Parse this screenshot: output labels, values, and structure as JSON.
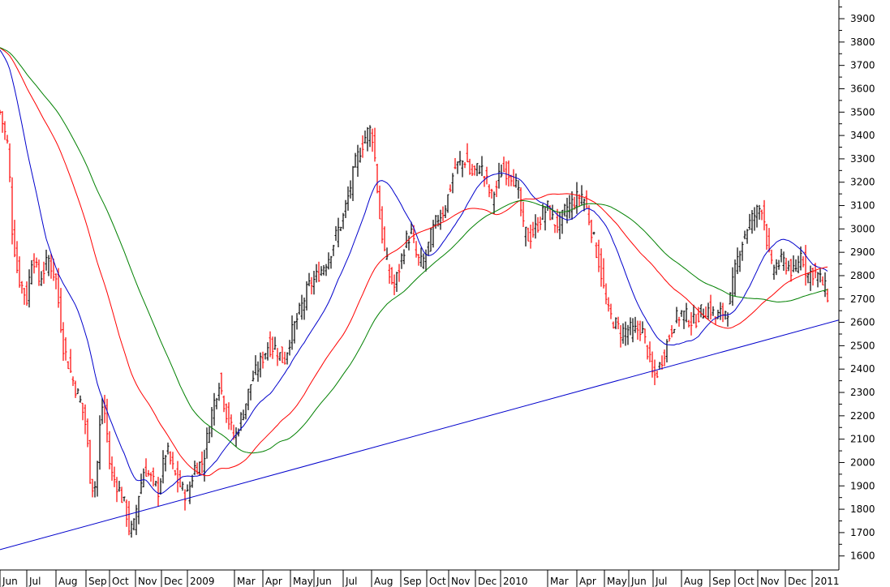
{
  "chart_data": {
    "type": "ohlc",
    "grid": false,
    "legend": "none",
    "y_axis": {
      "side": "right",
      "range": [
        1540,
        3980
      ],
      "ticks": [
        1600,
        1700,
        1800,
        1900,
        2000,
        2100,
        2200,
        2300,
        2400,
        2500,
        2600,
        2700,
        2800,
        2900,
        3000,
        3100,
        3200,
        3300,
        3400,
        3500,
        3600,
        3700,
        3800,
        3900
      ]
    },
    "x_axis": {
      "range": [
        0,
        1034
      ],
      "labels": [
        {
          "text": "Jun",
          "x": 0
        },
        {
          "text": "Jul",
          "x": 33
        },
        {
          "text": "Aug",
          "x": 69
        },
        {
          "text": "Sep",
          "x": 106
        },
        {
          "text": "Oct",
          "x": 135
        },
        {
          "text": "Nov",
          "x": 167
        },
        {
          "text": "Dec",
          "x": 199
        },
        {
          "text": "2009",
          "x": 231
        },
        {
          "text": "Mar",
          "x": 289
        },
        {
          "text": "Apr",
          "x": 324
        },
        {
          "text": "May",
          "x": 358
        },
        {
          "text": "Jun",
          "x": 387
        },
        {
          "text": "Jul",
          "x": 423
        },
        {
          "text": "Aug",
          "x": 458
        },
        {
          "text": "Sep",
          "x": 494
        },
        {
          "text": "Oct",
          "x": 526
        },
        {
          "text": "Nov",
          "x": 553
        },
        {
          "text": "Dec",
          "x": 586
        },
        {
          "text": "2010",
          "x": 617
        },
        {
          "text": "Mar",
          "x": 675
        },
        {
          "text": "Apr",
          "x": 711
        },
        {
          "text": "May",
          "x": 745
        },
        {
          "text": "Jun",
          "x": 775
        },
        {
          "text": "Jul",
          "x": 805
        },
        {
          "text": "Aug",
          "x": 840
        },
        {
          "text": "Sep",
          "x": 875
        },
        {
          "text": "Oct",
          "x": 906
        },
        {
          "text": "Nov",
          "x": 934
        },
        {
          "text": "Dec",
          "x": 968
        },
        {
          "text": "2011",
          "x": 1001
        }
      ]
    },
    "price_keypoints": [
      [
        0,
        3500
      ],
      [
        10,
        3350
      ],
      [
        15,
        3000
      ],
      [
        22,
        2800
      ],
      [
        33,
        2700
      ],
      [
        40,
        2900
      ],
      [
        48,
        2780
      ],
      [
        60,
        2870
      ],
      [
        69,
        2780
      ],
      [
        78,
        2500
      ],
      [
        90,
        2350
      ],
      [
        100,
        2250
      ],
      [
        106,
        2150
      ],
      [
        112,
        1900
      ],
      [
        118,
        1900
      ],
      [
        125,
        2250
      ],
      [
        130,
        2200
      ],
      [
        136,
        1960
      ],
      [
        145,
        1900
      ],
      [
        155,
        1800
      ],
      [
        160,
        1700
      ],
      [
        165,
        1730
      ],
      [
        170,
        1850
      ],
      [
        178,
        1980
      ],
      [
        186,
        1930
      ],
      [
        195,
        1880
      ],
      [
        205,
        2060
      ],
      [
        215,
        1950
      ],
      [
        225,
        1880
      ],
      [
        231,
        1860
      ],
      [
        240,
        1980
      ],
      [
        250,
        2000
      ],
      [
        260,
        2200
      ],
      [
        270,
        2350
      ],
      [
        280,
        2200
      ],
      [
        289,
        2100
      ],
      [
        300,
        2220
      ],
      [
        310,
        2350
      ],
      [
        320,
        2420
      ],
      [
        330,
        2500
      ],
      [
        340,
        2490
      ],
      [
        350,
        2430
      ],
      [
        358,
        2540
      ],
      [
        370,
        2650
      ],
      [
        380,
        2750
      ],
      [
        387,
        2780
      ],
      [
        395,
        2820
      ],
      [
        405,
        2880
      ],
      [
        415,
        2980
      ],
      [
        423,
        3050
      ],
      [
        430,
        3150
      ],
      [
        438,
        3280
      ],
      [
        445,
        3350
      ],
      [
        452,
        3410
      ],
      [
        458,
        3430
      ],
      [
        462,
        3300
      ],
      [
        468,
        3050
      ],
      [
        474,
        2900
      ],
      [
        480,
        2800
      ],
      [
        486,
        2750
      ],
      [
        494,
        2860
      ],
      [
        500,
        2950
      ],
      [
        507,
        2980
      ],
      [
        514,
        2870
      ],
      [
        520,
        2850
      ],
      [
        526,
        2900
      ],
      [
        532,
        2980
      ],
      [
        540,
        3050
      ],
      [
        547,
        3080
      ],
      [
        553,
        3150
      ],
      [
        560,
        3260
      ],
      [
        567,
        3280
      ],
      [
        575,
        3300
      ],
      [
        580,
        3230
      ],
      [
        586,
        3250
      ],
      [
        592,
        3270
      ],
      [
        600,
        3200
      ],
      [
        605,
        3130
      ],
      [
        612,
        3180
      ],
      [
        617,
        3250
      ],
      [
        625,
        3250
      ],
      [
        632,
        3230
      ],
      [
        640,
        3130
      ],
      [
        645,
        3000
      ],
      [
        652,
        2960
      ],
      [
        660,
        3000
      ],
      [
        668,
        3060
      ],
      [
        675,
        3090
      ],
      [
        682,
        3030
      ],
      [
        690,
        3020
      ],
      [
        698,
        3090
      ],
      [
        705,
        3110
      ],
      [
        711,
        3130
      ],
      [
        718,
        3150
      ],
      [
        725,
        3060
      ],
      [
        732,
        2950
      ],
      [
        740,
        2830
      ],
      [
        745,
        2720
      ],
      [
        750,
        2640
      ],
      [
        757,
        2600
      ],
      [
        765,
        2560
      ],
      [
        775,
        2570
      ],
      [
        782,
        2560
      ],
      [
        790,
        2580
      ],
      [
        798,
        2480
      ],
      [
        805,
        2360
      ],
      [
        812,
        2400
      ],
      [
        818,
        2470
      ],
      [
        823,
        2520
      ],
      [
        830,
        2600
      ],
      [
        840,
        2640
      ],
      [
        848,
        2620
      ],
      [
        855,
        2600
      ],
      [
        862,
        2640
      ],
      [
        870,
        2650
      ],
      [
        875,
        2660
      ],
      [
        882,
        2620
      ],
      [
        890,
        2640
      ],
      [
        898,
        2660
      ],
      [
        906,
        2820
      ],
      [
        912,
        2920
      ],
      [
        920,
        3000
      ],
      [
        928,
        3050
      ],
      [
        934,
        3080
      ],
      [
        940,
        3100
      ],
      [
        944,
        2980
      ],
      [
        950,
        2830
      ],
      [
        958,
        2850
      ],
      [
        965,
        2860
      ],
      [
        972,
        2840
      ],
      [
        980,
        2800
      ],
      [
        986,
        2900
      ],
      [
        990,
        2870
      ],
      [
        995,
        2800
      ],
      [
        1001,
        2820
      ],
      [
        1008,
        2800
      ],
      [
        1015,
        2760
      ],
      [
        1022,
        2700
      ]
    ],
    "trendline": {
      "x": [
        0,
        1034
      ],
      "y": [
        1627,
        2610
      ],
      "color": "#0000cc"
    },
    "series": [
      {
        "color": "#0000cc",
        "period": 4
      },
      {
        "color": "#ff0000",
        "period": 10
      },
      {
        "color": "#008000",
        "period": 15
      }
    ],
    "up_color": "#000000",
    "down_color": "#ff0000"
  }
}
